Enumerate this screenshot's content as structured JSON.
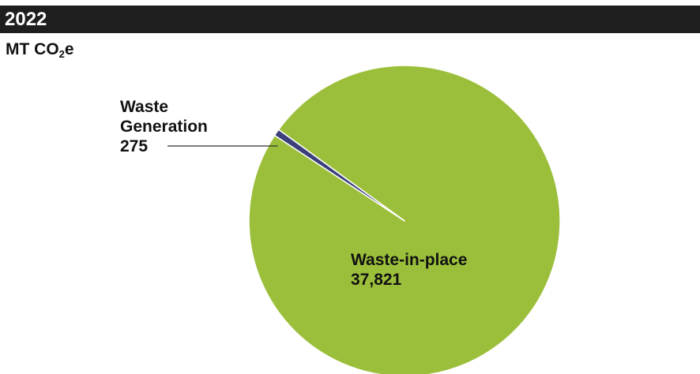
{
  "header": {
    "title": "2022"
  },
  "units": {
    "prefix": "MT CO",
    "subscript": "2",
    "suffix": "e"
  },
  "colors": {
    "title_bar": "#1e1e1e",
    "waste_in_place": "#9cbf3b",
    "waste_generation": "#3b3f7a",
    "text": "#111111"
  },
  "chart_data": {
    "type": "pie",
    "title": "2022",
    "subtitle": "MT CO₂e",
    "slices": [
      {
        "label_lines": [
          "Waste-in-place"
        ],
        "value": 37821,
        "value_label": "37,821",
        "color": "#9cbf3b"
      },
      {
        "label_lines": [
          "Waste",
          "Generation"
        ],
        "value": 275,
        "value_label": "275",
        "color": "#3b3f7a"
      }
    ],
    "legend": "none"
  }
}
